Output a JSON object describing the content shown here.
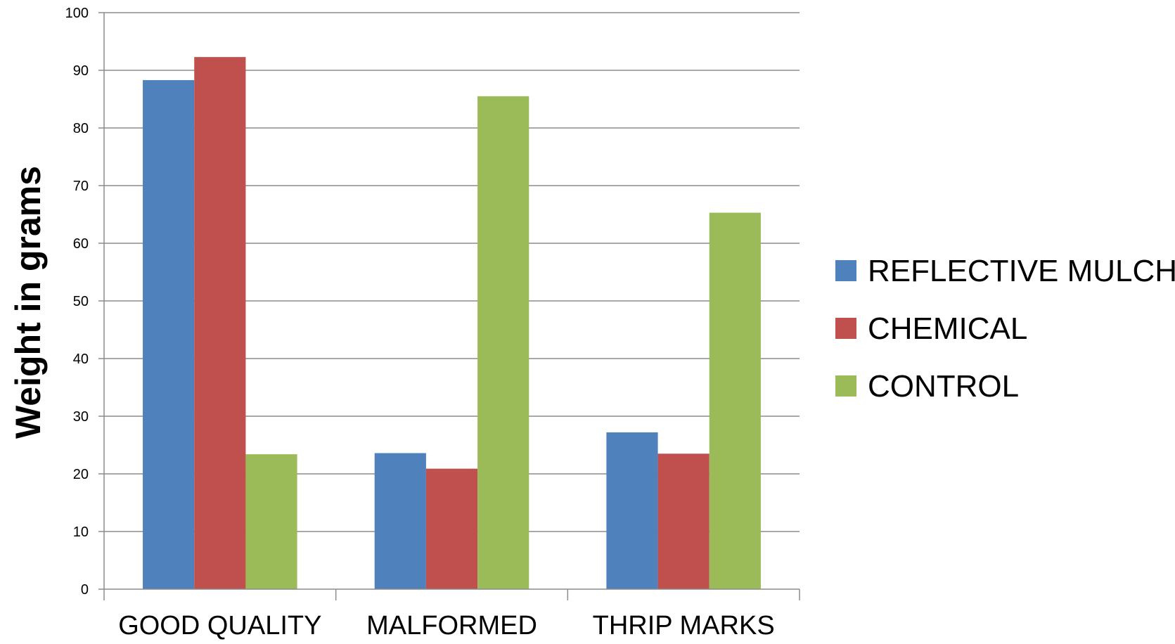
{
  "chart_data": {
    "type": "bar",
    "title": "",
    "xlabel": "",
    "ylabel": "Weight in grams",
    "categories": [
      "GOOD QUALITY",
      "MALFORMED",
      "THRIP MARKS"
    ],
    "series": [
      {
        "name": "REFLECTIVE MULCH",
        "color": "#4F81BD",
        "values": [
          88.3,
          23.6,
          27.2
        ]
      },
      {
        "name": "CHEMICAL",
        "color": "#C0504D",
        "values": [
          92.3,
          20.9,
          23.5
        ]
      },
      {
        "name": "CONTROL",
        "color": "#9BBB59",
        "values": [
          23.4,
          85.5,
          65.3
        ]
      }
    ],
    "ylim": [
      0,
      100
    ],
    "yticks": [
      0,
      10,
      20,
      30,
      40,
      50,
      60,
      70,
      80,
      90,
      100
    ],
    "grid": true,
    "legend_position": "right"
  }
}
